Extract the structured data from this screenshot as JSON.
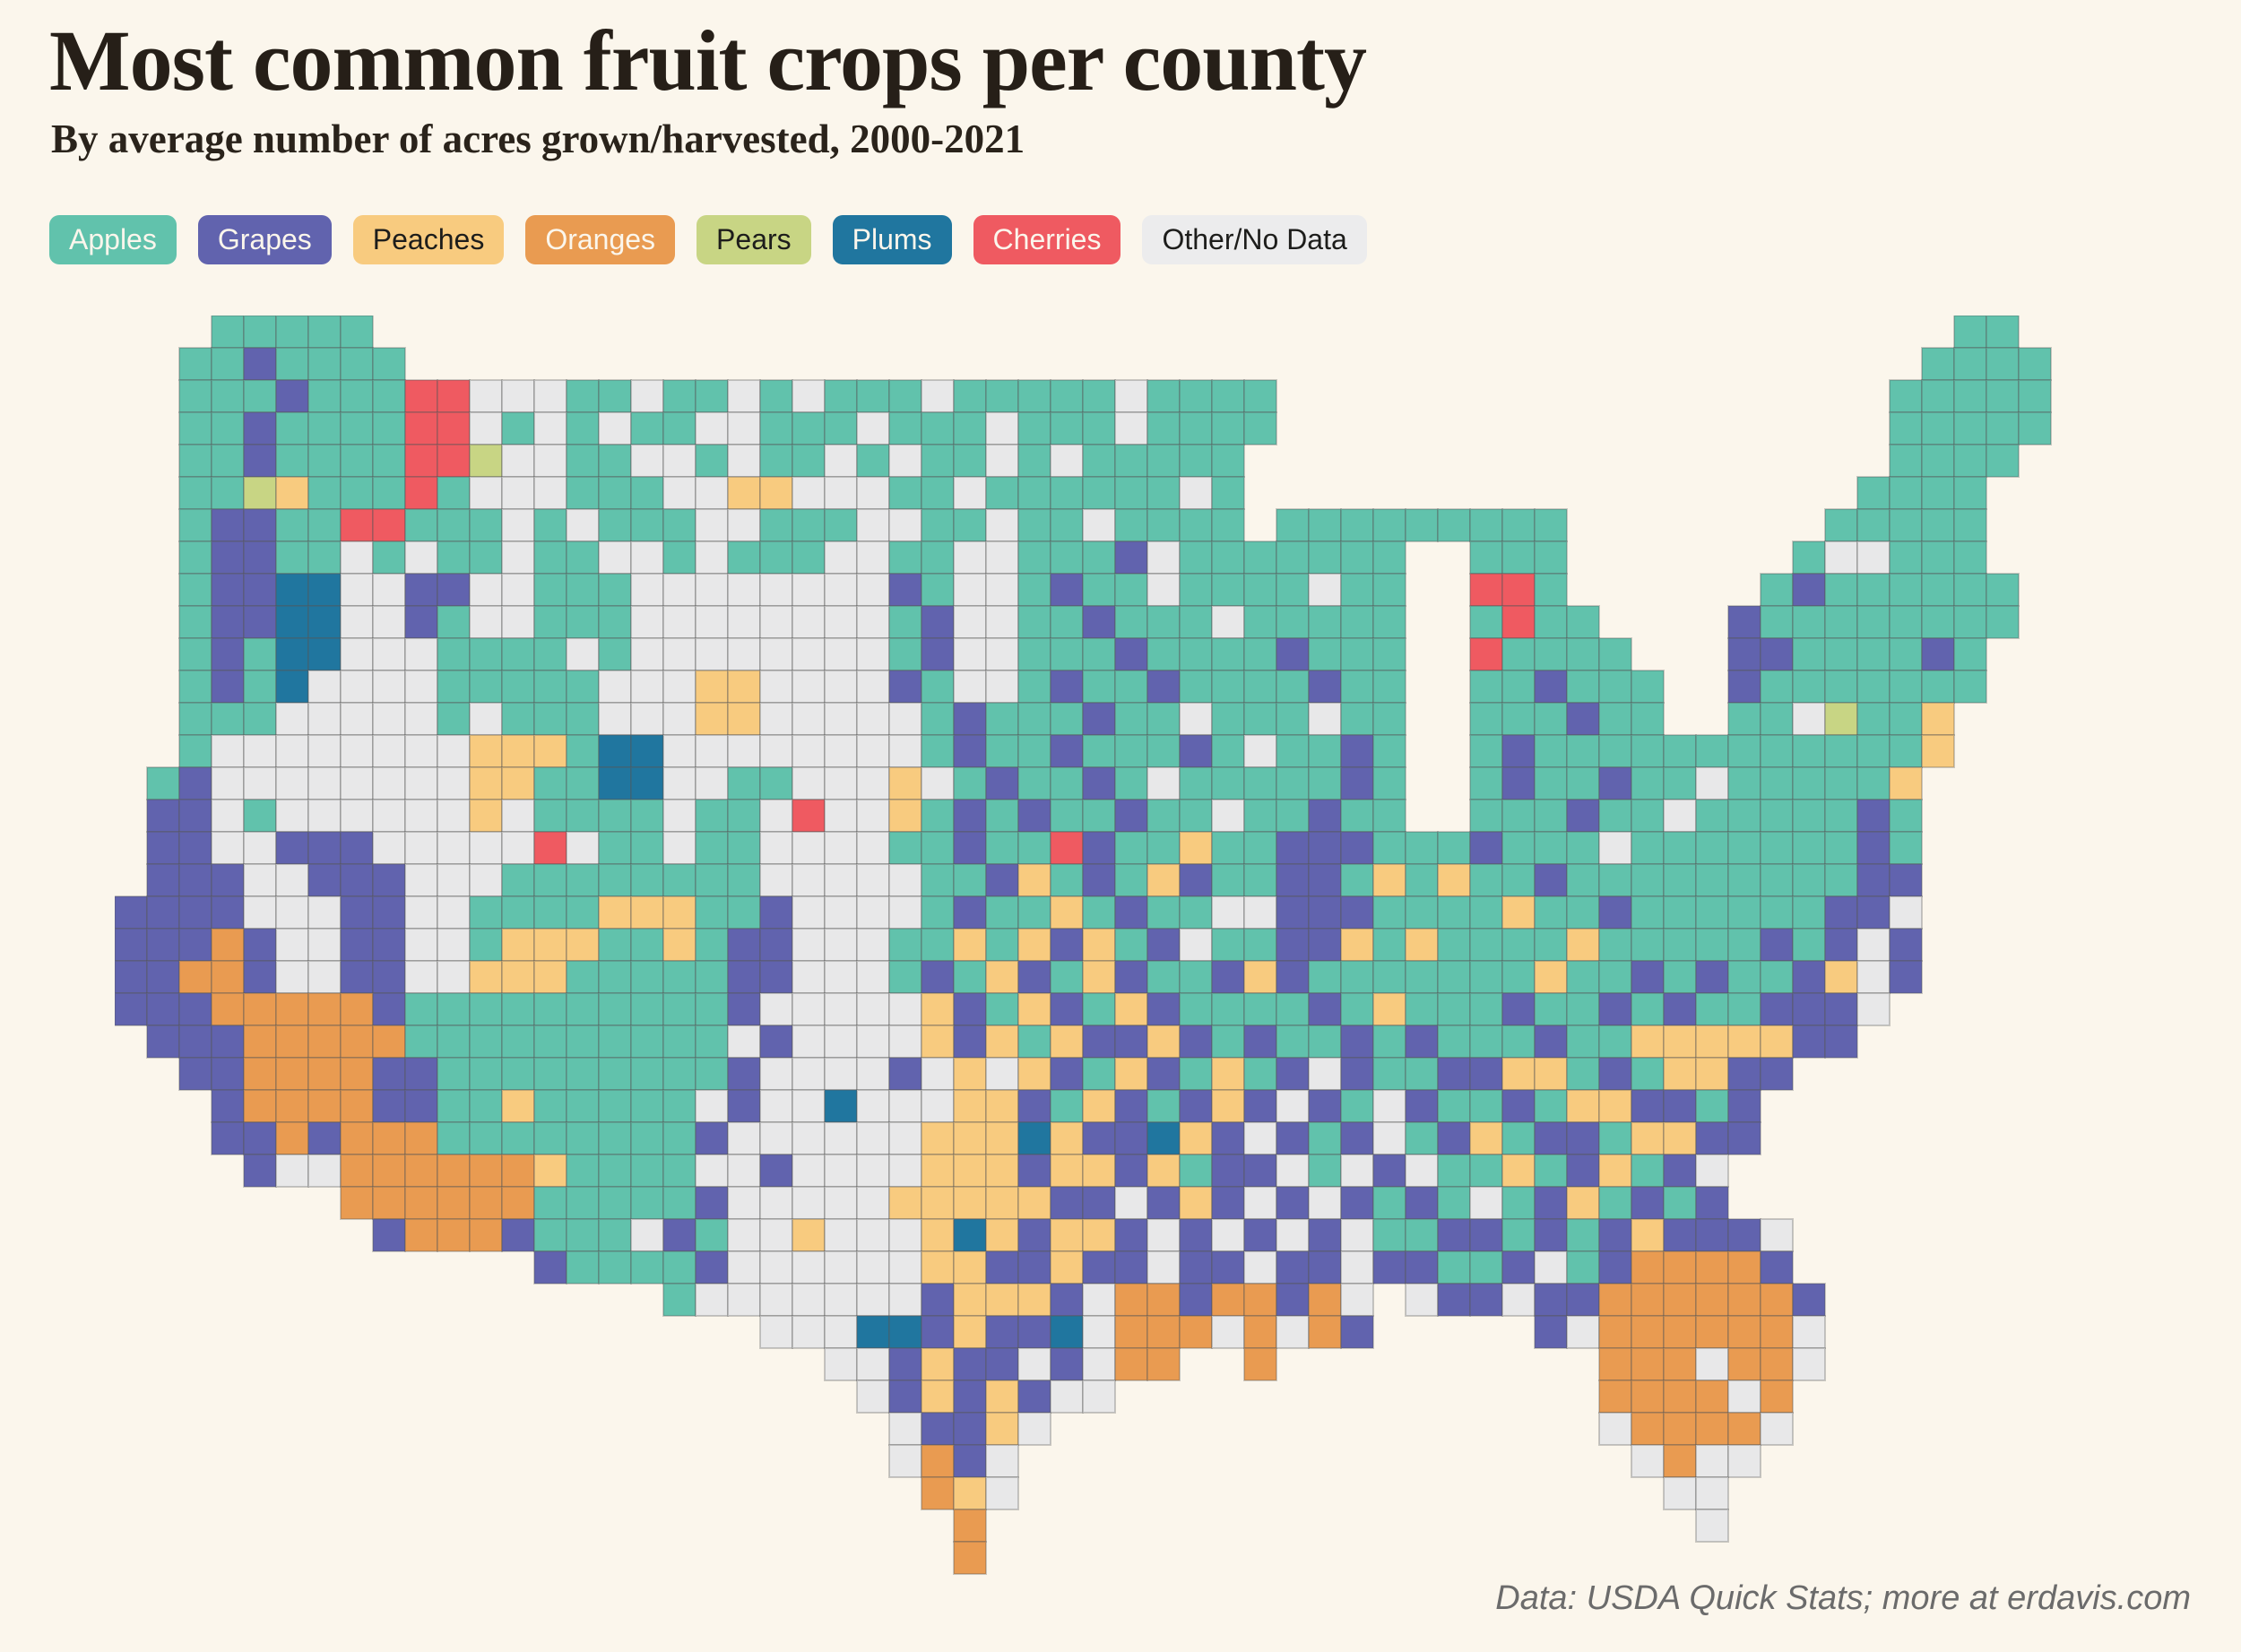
{
  "title": "Most common fruit crops per county",
  "subtitle": "By average number of acres grown/harvested, 2000-2021",
  "footer": "Data: USDA Quick Stats; more at erdavis.com",
  "colors": {
    "background": "#FBF6EC",
    "title_text": "#261F18",
    "footer_text": "#6B6B6B",
    "county_border": "rgba(85,85,85,0.30)",
    "state_border": "#FFFFFF"
  },
  "legend": [
    {
      "key": "A",
      "label": "Apples",
      "color": "#61C2AC",
      "text_color": "#FBF6EC"
    },
    {
      "key": "G",
      "label": "Grapes",
      "color": "#6163AE",
      "text_color": "#FBF6EC"
    },
    {
      "key": "P",
      "label": "Peaches",
      "color": "#F8CB7F",
      "text_color": "#1D1D1B"
    },
    {
      "key": "O",
      "label": "Oranges",
      "color": "#E99B51",
      "text_color": "#FBF6EC"
    },
    {
      "key": "R",
      "label": "Pears",
      "color": "#C8D584",
      "text_color": "#1D1D1B"
    },
    {
      "key": "L",
      "label": "Plums",
      "color": "#20769F",
      "text_color": "#FBF6EC"
    },
    {
      "key": "C",
      "label": "Cherries",
      "color": "#EF5A61",
      "text_color": "#FBF6EC"
    },
    {
      "key": "N",
      "label": "Other/No Data",
      "color": "#ECECED",
      "text_color": "#1D1D1B"
    }
  ],
  "map": {
    "cols": 64,
    "rows": 40,
    "palette": {
      "A": "#61C2AC",
      "G": "#6163AE",
      "P": "#F8CB7F",
      "O": "#E99B51",
      "R": "#C8D584",
      "L": "#20769F",
      "C": "#EF5A61",
      "N": "#E8E8E9"
    },
    "grid_rle": [
      "3.,5A,49.,2A,5.",
      "2.,2A,1G,4A,47.,4A,4.",
      "2.,3A,1G,3A,2C,3N,2A,1N,2A,1N,1A,1N,3A,1N,2A,3A,1N,4A,19.,5A,4.",
      "2.,2A,1G,4A,2C,1N,1A,1N,1A,1N,2A,2N,2A,1A,1N,3A,1N,3A,1N,4A,19.,5A,4.",
      "2.,2A,1G,4A,2C,1R,2N,2A,2N,1A,1N,2A,1N,1A,1N,2A,1N,1A,1N,5A,20.,4A,5.",
      "2.,2A,1R,1P,2A,1A,1C,1A,3N,3A,2N,2P,1N,2N,2A,1N,1A,5A,1N,1A,19.,4A,6.",
      "2.,1A,2G,2A,2C,1A,2A,1N,1A,1N,3A,2N,2A,1A,2N,2A,1N,2A,1N,4A,1.,9A,8.,5A,6.",
      "2.,1A,2G,2A,1N,1A,1N,2A,1N,1A,1A,2N,1A,1N,3A,2N,2A,2N,3A,1G,1N,2A,5A,2.,3A,7.,1A,2N,3A,6.",
      "2.,1A,2G,2L,2N,1G,1G,2N,1A,2A,6N,2N,1G,1A,2N,1A,1G,2A,1N,2A,2A,1N,2A,2.,2C,1A,6.,1A,1G,6A,5.",
      "2.,1A,2G,2L,2N,1G,1A,2N,1A,2A,6N,2N,1A,1G,2N,2A,1G,3A,1N,5A,2.,1A,1C,2A,4.,1G,8A,5.",
      "2.,1A,1G,1A,2L,3N,4A,1N,1A,6N,2N,1A,1G,2N,3A,1G,3A,1A,1G,3A,2.,1C,4A,3.,2G,4A,1G,1A,6.",
      "2.,1A,1G,1A,1L,4N,4A,1A,3N,2P,2N,2N,1G,1A,2N,1A,1G,2A,1G,2A,2A,1G,2A,2.,2A,1G,3A,2.,1G,7A,6.",
      "2.,3A,5N,1A,1N,2A,1A,3N,2P,2N,3N,1A,1G,1A,2A,1G,2A,1N,1A,2A,1N,2A,2.,3A,1G,2A,2.,2A,1N,1R,2A,1P,7.",
      "2.,1A,3N,4N,1N,3P,1A,2L,5N,3N,1A,1G,1A,1A,1G,3A,1G,1A,1N,2A,1G,1A,2.,1A,1G,4A,2A,6A,1P,7.",
      "1.,1A,1G,3N,5N,2P,1A,1A,2L,2N,2A,1N,2N,1P,1N,1A,1G,2A,1G,1A,1N,2A,3A,1G,1A,2.,1A,1G,2A,1G,1A,1A,1N,5A,1P,8.",
      "1.,2G,1N,1A,1N,5N,1P,1N,1A,3A,1N,2A,1N,1C,2N,1P,1A,1G,1A,1G,2A,1G,2A,1N,2A,1G,2A,2.,3A,1G,2A,1N,1A,4A,1G,1A,8.",
      "1.,2G,2N,1G,2G,3N,2N,1C,1N,2A,1N,2A,2N,2N,2A,1G,1A,1A,1C,1G,2A,1P,1A,1A,3G,1A,2A,1G,3A,1N,1A,2A,4A,1G,1A,8.",
      "1.,3G,2N,3G,2N,1N,2A,3A,3A,2N,3N,2A,1G,1P,1A,1G,1A,1P,1G,1A,1A,2G,1A,1P,1A,1P,2A,1G,3A,2A,4A,2G,8.",
      "4G,2N,1N,2G,2N,4A,2P,1P,2A,1G,1N,3N,1A,1G,1A,1A,1P,1A,1G,2A,1N,1N,3G,1A,2A,1A,1P,2A,1G,1A,2A,3A,2G,1N,8.",
      "3G,1O,1G,1N,1N,2G,2N,1A,3P,2A,1P,1A,2G,1N,2N,2A,1P,1A,1P,1G,1P,1A,1G,1N,1A,1A,2G,1P,1A,1P,1A,3A,1P,2A,2A,1A,1G,1A,1G,1N,1G,8.",
      "2G,2O,1G,1N,1N,2G,2N,3P,3A,2A,2G,1N,2N,1A,1G,1A,1P,1G,1A,1P,1G,2A,1G,1P,1G,3A,2A,2A,1P,2A,1G,1A,1G,2A,1G,1P,1N,1G,8.",
      "3G,3O,2O,1G,2A,6A,2A,1G,2N,3N,1P,1G,1A,1P,1G,1A,1P,1G,2A,2A,1G,1A,1P,2A,1A,1G,2A,1G,1A,1G,1A,1A,3G,1N,9.",
      "1.,3G,2O,3O,2A,6A,2A,1N,1G,1N,3N,1P,1G,1P,1A,1P,2G,1P,1G,1A,1G,2A,1G,1A,1G,1A,2A,1G,2A,1P,2P,2P,2G,10.",
      "2.,2G,2O,2O,2G,1A,6A,2A,1G,2N,2N,1G,1N,1P,1N,1P,1G,1A,1P,1G,1A,1P,1A,1G,1N,1G,1A,1A,1G,1G,2P,1A,1G,1A,2P,2G,12.",
      "3.,1G,2O,2O,2G,1A,1A,1P,4A,1A,1N,1G,2N,1L,3N,2P,1G,1A,1P,1G,1A,1G,1P,1G,1N,1G,1A,1N,1G,1A,1A,1G,1A,2P,1G,1G,1A,1G,13.",
      "3.,2G,1O,1G,3O,1A,6A,1A,1G,3N,3N,3P,1L,1P,2G,1L,1P,1G,1N,1G,1A,1G,1N,1A,1G,1P,1A,2G,1A,1P,1P,1G,1G,13.",
      "4.,1G,1N,1N,4O,2O,1P,3A,1A,2N,1G,1N,3N,3P,1G,2P,1G,1P,1A,1G,1G,1N,1A,1N,1G,1N,1A,1A,1P,1A,1G,1P,1A,1G,1N,14.",
      "7.,4O,2O,4A,1A,1G,3N,2N,4P,1P,2G,1N,1G,1P,1G,1N,1G,1N,1G,1A,1G,1A,1N,1A,1G,1P,1A,1G,1A,1G,14.",
      "8.,1G,2O,1O,1G,3A,1N,1G,1A,2N,1P,3N,1P,1L,1P,1G,2P,1G,1N,1G,1N,1G,1N,1G,1N,1A,1A,1G,1G,1A,1G,1A,1G,1P,2G,1G,1N,12.",
      "13.,1G,3A,1A,1G,3N,3N,2P,1G,1G,1P,2G,1N,2G,1N,2G,1N,1G,1G,1A,1A,1G,1N,1A,1G,1O,2O,1O,1G,12.",
      "17.,1A,4N,3N,1G,2P,1P,1G,1N,2O,1G,1O,1O,1G,1O,1N,1.,1N,1G,1G,1N,2G,2O,2O,2O,1G,11.",
      "20.,2N,1N,2L,1G,1P,1G,1G,1L,1N,3O,1N,1O,1N,1O,1G,5.,1G,1N,6O,1N,11.",
      "22.,2N,1G,1P,2G,1N,1G,1N,2O,2.,1O,10.,3O,1N,2O,1N,11.",
      "23.,1N,1G,1P,1G,1P,1G,2N,15.,4O,1N,1O,12.",
      "24.,1N,2G,1P,1N,17.,1N,4O,1N,12.",
      "24.,1N,1O,1G,1N,19.,1N,1O,2N,13.",
      "25.,1O,1P,1N,20.,2N,14.",
      "26.,1O,22.,1N,14.",
      "26.,1O,37.",
      "64.",
      "64."
    ]
  }
}
